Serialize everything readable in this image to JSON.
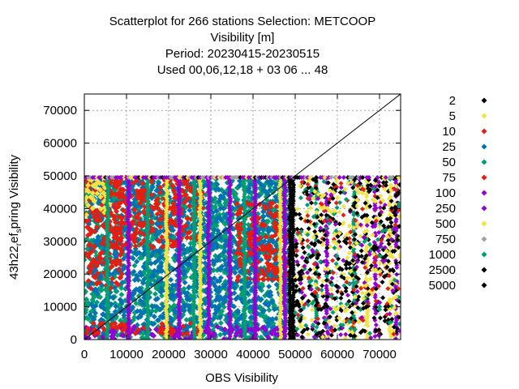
{
  "chart_data": {
    "type": "scatter",
    "title_lines": [
      "Scatterplot for  266 stations Selection: METCOOP",
      "Visibility [m]",
      "Period: 20230415-20230515",
      "Used  00,06,12,18  + 03 06 ... 48"
    ],
    "xlabel": "OBS Visibility",
    "ylabel_main": "43h22",
    "ylabel_sub1": "r",
    "ylabel_mid": "ef",
    "ylabel_sub2": "s",
    "ylabel_tail": "pring Visibility",
    "xlim": [
      0,
      75000
    ],
    "ylim": [
      0,
      75000
    ],
    "x_ticks": [
      0,
      10000,
      20000,
      30000,
      40000,
      50000,
      60000,
      70000
    ],
    "x_tick_labels": [
      "0",
      "10000",
      "20000",
      "30000",
      "40000",
      "50000",
      "60000",
      "70000"
    ],
    "y_ticks": [
      0,
      10000,
      20000,
      30000,
      40000,
      50000,
      60000,
      70000
    ],
    "y_tick_labels": [
      "0",
      "10000",
      "20000",
      "30000",
      "40000",
      "50000",
      "60000",
      "70000"
    ],
    "grid": true,
    "diagonal": true,
    "legend_position": "right",
    "series": [
      {
        "name": "2",
        "color": "#000000"
      },
      {
        "name": "5",
        "color": "#f0e442"
      },
      {
        "name": "10",
        "color": "#e51e10"
      },
      {
        "name": "25",
        "color": "#0072b2"
      },
      {
        "name": "50",
        "color": "#009e73"
      },
      {
        "name": "75",
        "color": "#e51e10"
      },
      {
        "name": "100",
        "color": "#9400d3"
      },
      {
        "name": "250",
        "color": "#9400d3"
      },
      {
        "name": "500",
        "color": "#f0e442"
      },
      {
        "name": "750",
        "color": "#a0a0a0"
      },
      {
        "name": "1000",
        "color": "#009e73"
      },
      {
        "name": "2500",
        "color": "#000000"
      },
      {
        "name": "5000",
        "color": "#000000"
      }
    ],
    "regions": [
      {
        "color": "#009e73",
        "x": [
          0,
          49000
        ],
        "y": [
          0,
          49500
        ]
      },
      {
        "color": "#0072b2",
        "x": [
          1000,
          48500
        ],
        "y": [
          1500,
          48500
        ]
      },
      {
        "color": "#e51e10",
        "x": [
          0,
          9000
        ],
        "y": [
          15000,
          49500
        ]
      },
      {
        "color": "#e51e10",
        "x": [
          7000,
          28000
        ],
        "y": [
          28000,
          49500
        ]
      },
      {
        "color": "#e51e10",
        "x": [
          36000,
          48000
        ],
        "y": [
          18000,
          42000
        ]
      },
      {
        "color": "#f0e442",
        "x": [
          0,
          6000
        ],
        "y": [
          38000,
          49500
        ]
      },
      {
        "color": "#9400d3",
        "x": [
          0,
          49000
        ],
        "y": [
          0,
          4000
        ]
      },
      {
        "color": "#e51e10",
        "x": [
          0,
          30000
        ],
        "y": [
          1500,
          5000
        ]
      }
    ],
    "columns": [
      {
        "color": "#f0e442",
        "x": 19500
      },
      {
        "color": "#f0e442",
        "x": 27500
      },
      {
        "color": "#f0e442",
        "x": 46500
      },
      {
        "color": "#9400d3",
        "x": 10500
      },
      {
        "color": "#9400d3",
        "x": 22500
      },
      {
        "color": "#9400d3",
        "x": 29500
      },
      {
        "color": "#9400d3",
        "x": 34500
      },
      {
        "color": "#9400d3",
        "x": 40500
      },
      {
        "color": "#9400d3",
        "x": 47500
      },
      {
        "color": "#009e73",
        "x": 5500
      },
      {
        "color": "#009e73",
        "x": 15000
      },
      {
        "color": "#009e73",
        "x": 26000
      },
      {
        "color": "#009e73",
        "x": 38000
      },
      {
        "color": "#000000",
        "x": 49500
      },
      {
        "color": "#000000",
        "x": 48800
      },
      {
        "color": "#009e73",
        "x": 55000
      },
      {
        "color": "#009e73",
        "x": 64000
      },
      {
        "color": "#9400d3",
        "x": 57500
      },
      {
        "color": "#9400d3",
        "x": 69000
      },
      {
        "color": "#9400d3",
        "x": 74000
      },
      {
        "color": "#f0e442",
        "x": 67000
      },
      {
        "color": "#f0e442",
        "x": 72500
      }
    ],
    "tops": [
      {
        "color": "#9400d3",
        "y": 49500
      }
    ],
    "scatter_band": {
      "x": [
        50000,
        75000
      ],
      "y": [
        500,
        49500
      ]
    }
  }
}
